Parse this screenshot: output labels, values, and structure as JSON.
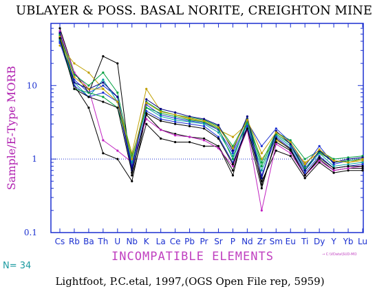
{
  "chart_data": {
    "type": "line",
    "title": "UBLAYER & POSS. BASAL NORITE, CREIGHTON MINE",
    "ylabel": "Sample/E-Type MORB",
    "xlabel": "INCOMPATIBLE ELEMENTS",
    "yscale": "log",
    "ylim": [
      0.1,
      70
    ],
    "yticks": [
      "10",
      "1",
      "0.1"
    ],
    "reference_line": 1,
    "categories": [
      "Cs",
      "Rb",
      "Ba",
      "Th",
      "U",
      "Nb",
      "K",
      "La",
      "Ce",
      "Pb",
      "Pr",
      "Sr",
      "P",
      "Nd",
      "Zr",
      "Sm",
      "Eu",
      "Ti",
      "Dy",
      "Y",
      "Yb",
      "Lu"
    ],
    "series": [
      {
        "color": "#000000",
        "values": [
          60,
          15,
          8,
          25,
          20,
          0.6,
          3.0,
          1.9,
          1.7,
          1.7,
          1.5,
          1.5,
          0.6,
          3.5,
          0.45,
          1.7,
          1.3,
          0.6,
          1.0,
          0.7,
          0.75,
          0.75
        ]
      },
      {
        "color": "#000000",
        "values": [
          45,
          10,
          5,
          1.2,
          1.0,
          0.5,
          4.0,
          2.5,
          2.2,
          2.0,
          1.9,
          1.5,
          0.7,
          2.8,
          0.5,
          1.3,
          1.1,
          0.55,
          0.9,
          0.65,
          0.7,
          0.7
        ]
      },
      {
        "color": "#c020c0",
        "values": [
          55,
          15,
          9,
          1.8,
          1.3,
          0.9,
          3.5,
          2.5,
          2.1,
          2.0,
          1.8,
          1.4,
          0.8,
          2.5,
          0.2,
          1.6,
          1.2,
          0.6,
          0.95,
          0.7,
          0.75,
          0.8
        ]
      },
      {
        "color": "#c0a000",
        "values": [
          35,
          20,
          15,
          9,
          6,
          1.2,
          9.0,
          4.5,
          4.0,
          3.5,
          3.2,
          2.5,
          2.0,
          3.0,
          1.0,
          1.8,
          1.4,
          0.9,
          1.2,
          0.95,
          0.9,
          0.95
        ]
      },
      {
        "color": "#00a040",
        "values": [
          50,
          14,
          10,
          15,
          8,
          1.0,
          6.0,
          4.5,
          4.0,
          3.7,
          3.4,
          2.8,
          1.5,
          3.5,
          0.9,
          2.3,
          1.8,
          1.0,
          1.3,
          1.0,
          1.05,
          1.1
        ]
      },
      {
        "color": "#1a2fd0",
        "values": [
          40,
          12,
          8,
          10,
          7,
          0.8,
          5.5,
          4.0,
          3.6,
          3.3,
          3.1,
          2.5,
          1.2,
          3.2,
          1.5,
          2.6,
          1.7,
          0.8,
          1.5,
          0.85,
          0.95,
          1.0
        ]
      },
      {
        "color": "#00a0a0",
        "values": [
          42,
          11,
          7,
          12,
          6,
          0.9,
          5.0,
          3.8,
          3.4,
          3.2,
          3.0,
          2.3,
          1.1,
          3.0,
          0.7,
          2.1,
          1.5,
          0.7,
          1.2,
          0.8,
          0.85,
          0.9
        ]
      },
      {
        "color": "#1a2fd0",
        "values": [
          38,
          10,
          7,
          8,
          6,
          0.7,
          4.5,
          3.5,
          3.2,
          3.0,
          2.8,
          2.0,
          0.9,
          2.8,
          0.6,
          2.0,
          1.4,
          0.65,
          1.1,
          0.75,
          0.8,
          0.85
        ]
      },
      {
        "color": "#00a040",
        "values": [
          48,
          9,
          8,
          7,
          5,
          1.1,
          5.0,
          4.2,
          3.8,
          3.4,
          3.2,
          2.6,
          1.0,
          3.3,
          0.8,
          2.2,
          1.6,
          0.75,
          1.25,
          0.9,
          0.95,
          1.0
        ]
      },
      {
        "color": "#000080",
        "values": [
          52,
          11,
          9,
          11,
          7,
          0.75,
          6.5,
          4.8,
          4.3,
          3.8,
          3.5,
          2.9,
          1.3,
          3.8,
          0.55,
          2.4,
          1.6,
          0.7,
          1.3,
          0.9,
          1.0,
          1.05
        ]
      },
      {
        "color": "#c0a000",
        "values": [
          46,
          13,
          9,
          9,
          6,
          1.0,
          5.8,
          4.4,
          4.0,
          3.6,
          3.3,
          2.7,
          1.4,
          3.4,
          1.2,
          2.3,
          1.7,
          0.85,
          1.35,
          0.95,
          0.9,
          1.0
        ]
      },
      {
        "color": "#000000",
        "values": [
          44,
          9,
          7,
          6,
          5,
          0.65,
          4.2,
          3.3,
          3.0,
          2.8,
          2.6,
          1.9,
          0.85,
          2.6,
          0.4,
          1.9,
          1.35,
          0.6,
          1.05,
          0.75,
          0.8,
          0.8
        ]
      }
    ]
  },
  "count_label": "N= 34",
  "legend_tag": "→ C:\\VData\\SUD-MO",
  "caption": "Lightfoot, P.C.etal, 1997,(OGS Open File rep, 5959)"
}
